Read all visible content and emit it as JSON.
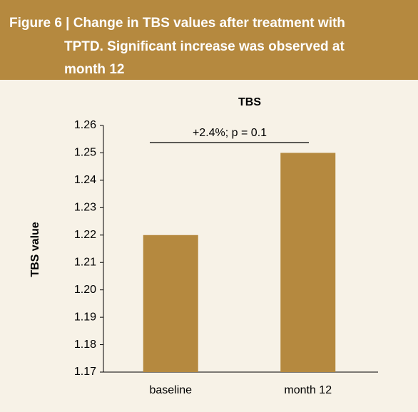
{
  "header": {
    "title_lines": [
      "Figure 6 | Change in TBS values after treatment with",
      "TPTD. Significant increase was observed at",
      "month 12"
    ]
  },
  "chart_data": {
    "type": "bar",
    "title": "TBS",
    "y_label": "TBS value",
    "categories": [
      "baseline",
      "month 12"
    ],
    "values": [
      1.22,
      1.25
    ],
    "color": "#b5893f",
    "ylim": [
      1.17,
      1.26
    ],
    "yticks": [
      1.17,
      1.18,
      1.19,
      {
        "value": 1.2,
        "label": "1.20"
      },
      1.21,
      1.22,
      1.23,
      1.24,
      1.25,
      1.26
    ],
    "annotation": "+2.4%; p = 0.1",
    "grid": false
  }
}
